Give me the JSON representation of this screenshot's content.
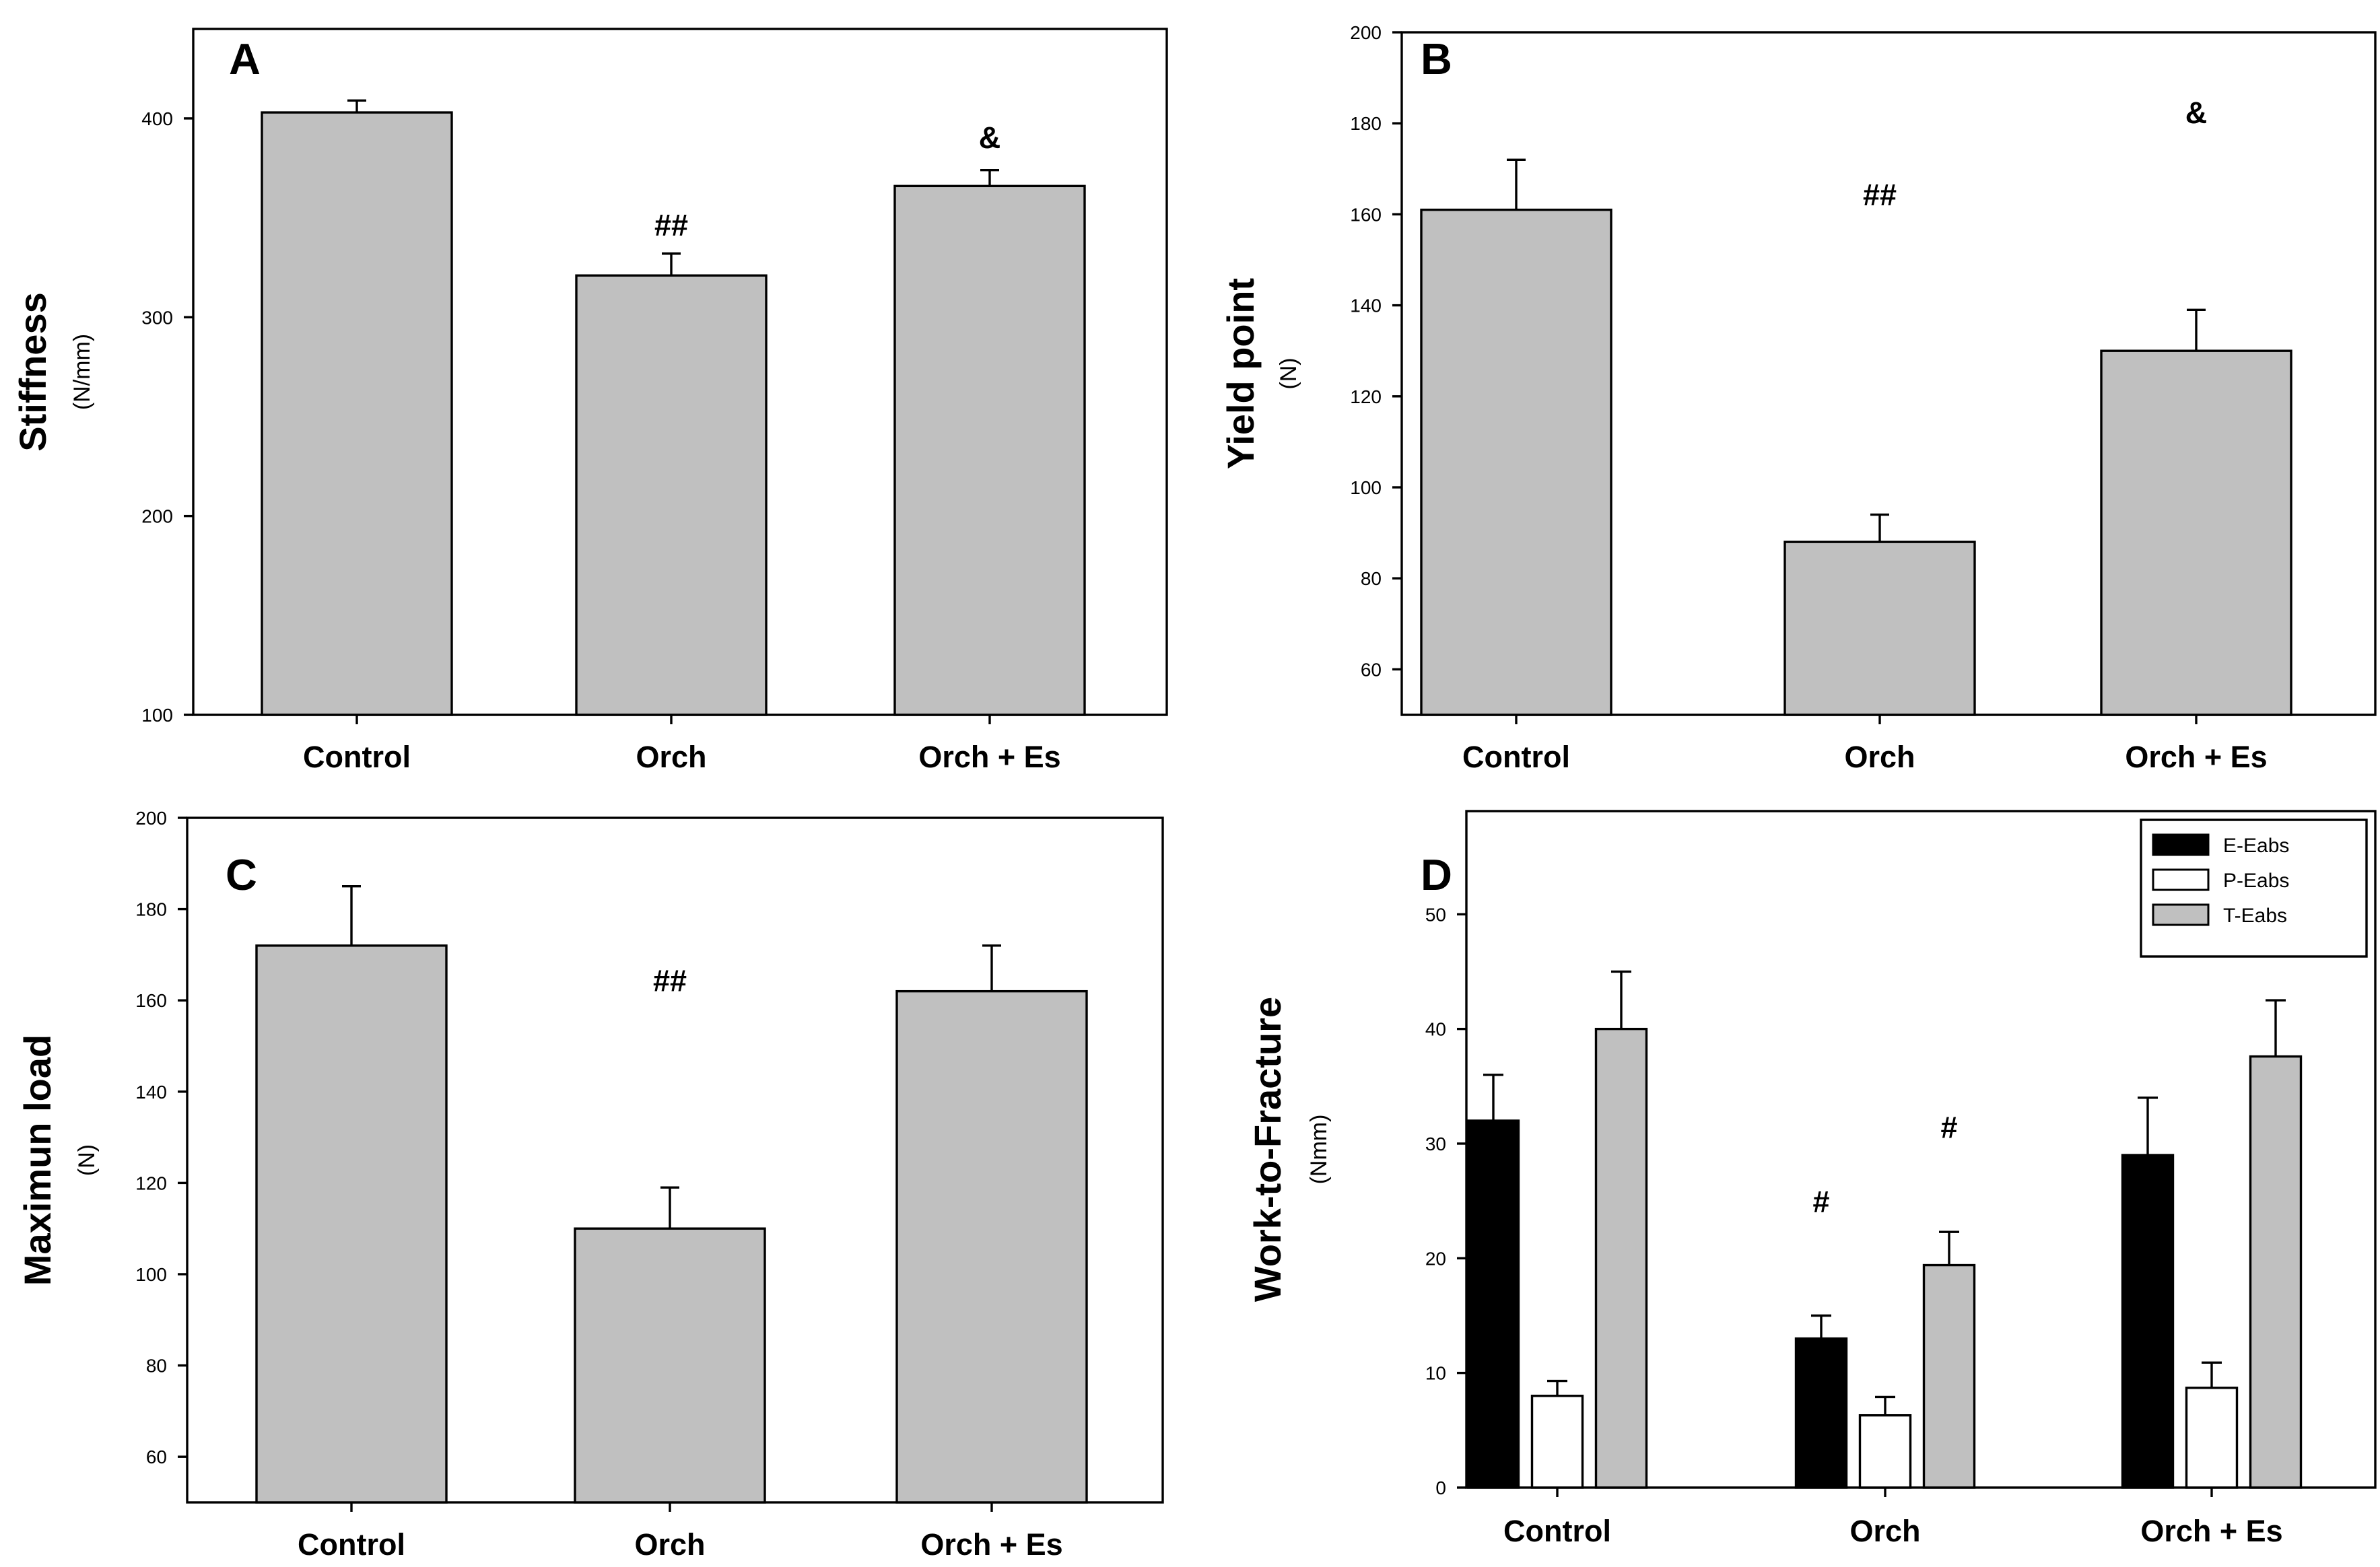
{
  "colors": {
    "gray": "#c0c0c0",
    "black": "#000000",
    "white": "#ffffff"
  },
  "chart_data": [
    {
      "panel": "A",
      "type": "bar",
      "categories": [
        "Control",
        "Orch",
        "Orch + Es"
      ],
      "series": [
        {
          "name": "Stiffness",
          "values": [
            403,
            321,
            366
          ],
          "errors": [
            6,
            11,
            8
          ],
          "color": "#c0c0c0"
        }
      ],
      "ylabel": "Stiffness",
      "yunit": "(N/mm)",
      "ylim": [
        100,
        445
      ],
      "yticks": [
        100,
        200,
        300,
        400
      ],
      "annotations": [
        {
          "category": 1,
          "text": "##",
          "y": 341
        },
        {
          "category": 2,
          "text": "&",
          "y": 385
        }
      ]
    },
    {
      "panel": "B",
      "type": "bar",
      "categories": [
        "Control",
        "Orch",
        "Orch + Es"
      ],
      "series": [
        {
          "name": "Yield point",
          "values": [
            161,
            88,
            130
          ],
          "errors": [
            11,
            6,
            9
          ],
          "color": "#c0c0c0"
        }
      ],
      "ylabel": "Yield point",
      "yunit": "(N)",
      "ylim": [
        50,
        200
      ],
      "yticks": [
        60,
        80,
        100,
        120,
        140,
        160,
        180,
        200
      ],
      "annotations": [
        {
          "category": 1,
          "text": "##",
          "y": 162
        },
        {
          "category": 2,
          "text": "&",
          "y": 180
        }
      ]
    },
    {
      "panel": "C",
      "type": "bar",
      "categories": [
        "Control",
        "Orch",
        "Orch + Es"
      ],
      "series": [
        {
          "name": "Maximun load",
          "values": [
            172,
            110,
            162
          ],
          "errors": [
            13,
            9,
            10
          ],
          "color": "#c0c0c0"
        }
      ],
      "ylabel": "Maximun load",
      "yunit": "(N)",
      "ylim": [
        50,
        200
      ],
      "yticks": [
        60,
        80,
        100,
        120,
        140,
        160,
        180,
        200
      ],
      "annotations": [
        {
          "category": 1,
          "text": "##",
          "y": 162
        }
      ]
    },
    {
      "panel": "D",
      "type": "bar",
      "categories": [
        "Control",
        "Orch",
        "Orch + Es"
      ],
      "series": [
        {
          "name": "E-Eabs",
          "values": [
            32,
            13,
            29
          ],
          "errors": [
            4,
            2,
            5
          ],
          "color": "#000000"
        },
        {
          "name": "P-Eabs",
          "values": [
            8,
            6.3,
            8.7
          ],
          "errors": [
            1.3,
            1.6,
            2.2
          ],
          "color": "#ffffff"
        },
        {
          "name": "T-Eabs",
          "values": [
            40,
            19.4,
            37.6
          ],
          "errors": [
            5,
            2.9,
            4.9
          ],
          "color": "#c0c0c0"
        }
      ],
      "ylabel": "Work-to-Fracture",
      "yunit": "(Nmm)",
      "ylim": [
        0,
        59
      ],
      "yticks": [
        0,
        10,
        20,
        30,
        40,
        50
      ],
      "legend_position": "top-right",
      "annotations": [
        {
          "category": 1,
          "series": 0,
          "text": "#",
          "y": 24
        },
        {
          "category": 1,
          "series": 2,
          "text": "#",
          "y": 30.5
        }
      ]
    }
  ]
}
